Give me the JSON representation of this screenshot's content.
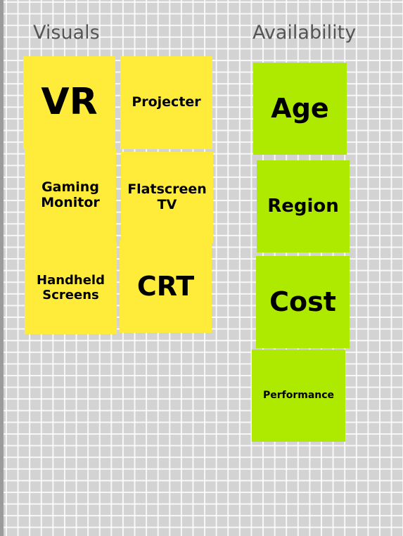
{
  "board": {
    "columns": [
      {
        "title": "Visuals",
        "notes": [
          {
            "text": "VR"
          },
          {
            "text": "Projecter"
          },
          {
            "text": "Gaming Monitor"
          },
          {
            "text": "Flatscreen TV"
          },
          {
            "text": "Handheld Screens"
          },
          {
            "text": "CRT"
          }
        ]
      },
      {
        "title": "Availability",
        "notes": [
          {
            "text": "Age"
          },
          {
            "text": "Region"
          },
          {
            "text": "Cost"
          },
          {
            "text": "Performance"
          }
        ]
      }
    ]
  },
  "colors": {
    "yellow_note": "#ffec3a",
    "green_note": "#aeea00",
    "board_background": "#d3d3d3",
    "grid_line": "#ffffff"
  }
}
